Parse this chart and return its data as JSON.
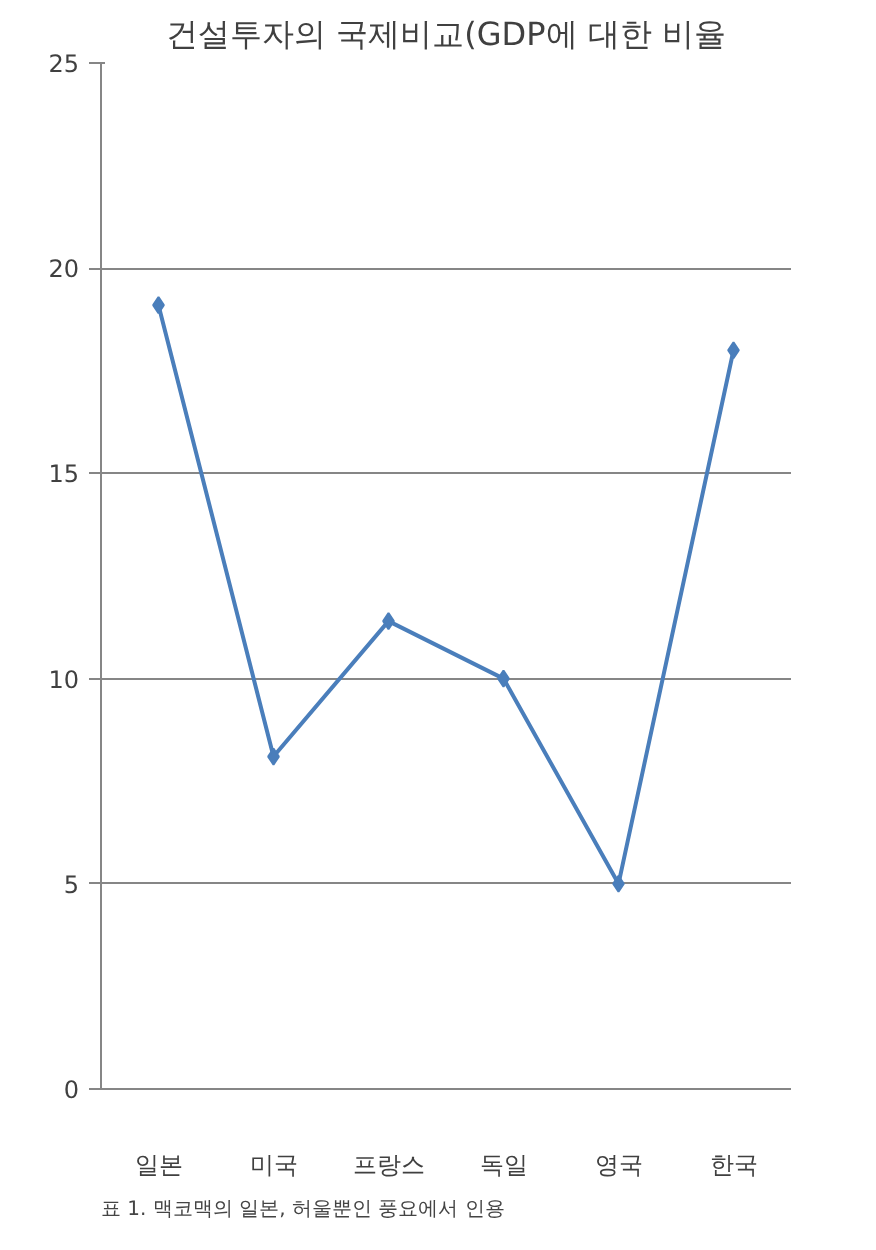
{
  "chart_data": {
    "type": "line",
    "title": "건설투자의 국제비교(GDP에 대한 비율",
    "categories": [
      "일본",
      "미국",
      "프랑스",
      "독일",
      "영국",
      "한국"
    ],
    "series": [
      {
        "color": "#4a7ebb",
        "values": [
          19.1,
          8.1,
          11.4,
          10,
          5,
          18
        ]
      }
    ],
    "ylim": [
      0,
      25
    ],
    "yticks": [
      0,
      5,
      10,
      15,
      20,
      25
    ],
    "grid": "y",
    "marker": "diamond",
    "line_style": "solid",
    "annotations": [
      "표 1. 맥코맥의 일본, 허울뿐인 풍요에서 인용"
    ]
  }
}
